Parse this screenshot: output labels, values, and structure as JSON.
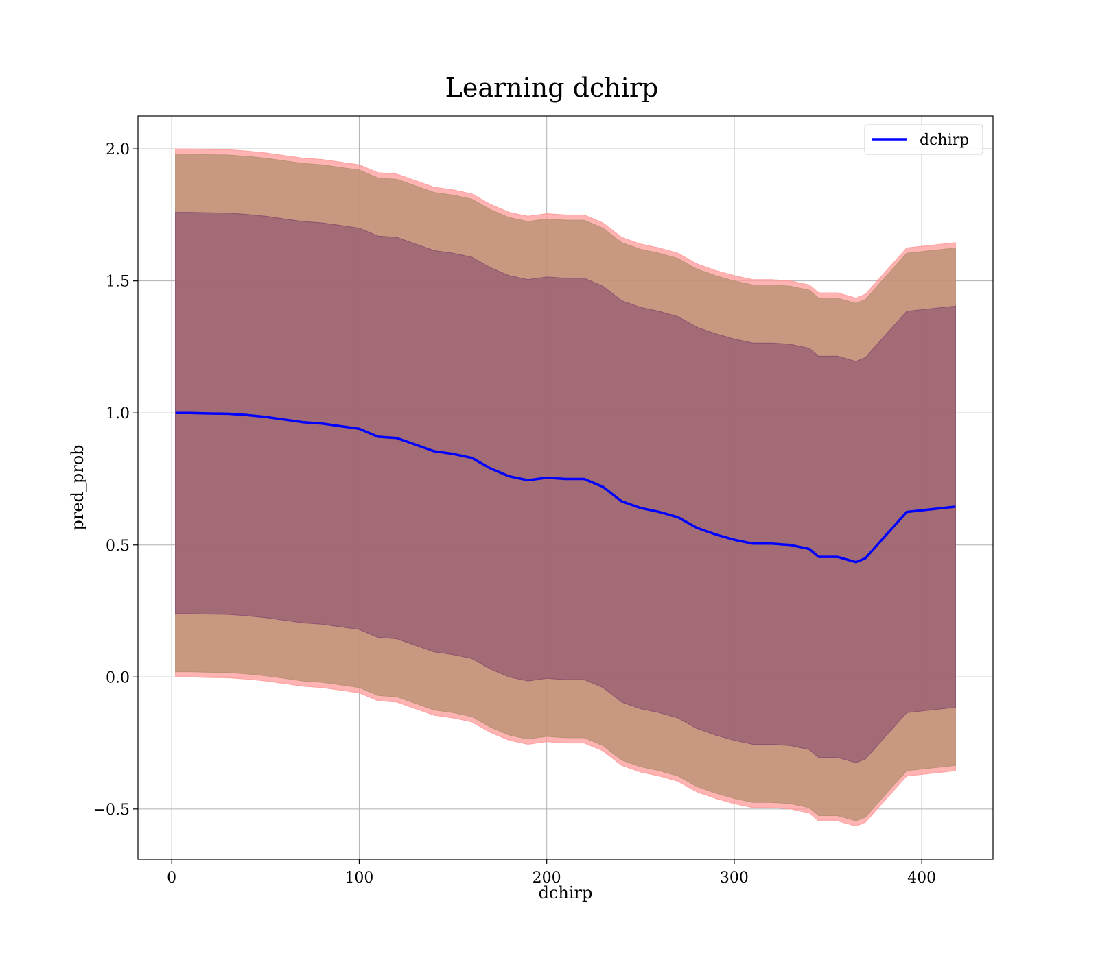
{
  "chart_data": {
    "type": "area",
    "title": "Learning dchirp",
    "xlabel": "dchirp",
    "ylabel": "pred_prob",
    "xlim": [
      -18,
      438
    ],
    "ylim": [
      -0.69,
      2.125
    ],
    "xticks": [
      0,
      100,
      200,
      300,
      400
    ],
    "xtick_labels": [
      "0",
      "100",
      "200",
      "300",
      "400"
    ],
    "yticks": [
      -0.5,
      0.0,
      0.5,
      1.0,
      1.5,
      2.0
    ],
    "ytick_labels": [
      "−0.5",
      "0.0",
      "0.5",
      "1.0",
      "1.5",
      "2.0"
    ],
    "grid": true,
    "legend": {
      "position": "top-right",
      "entries": [
        "dchirp"
      ]
    },
    "series": [
      {
        "name": "dchirp",
        "color": "#0000ff",
        "x": [
          2,
          10,
          20,
          30,
          40,
          50,
          60,
          70,
          80,
          90,
          100,
          110,
          120,
          130,
          140,
          150,
          160,
          170,
          180,
          190,
          200,
          210,
          220,
          230,
          240,
          250,
          260,
          270,
          280,
          290,
          300,
          310,
          320,
          330,
          340,
          345,
          355,
          365,
          370,
          380,
          392,
          418
        ],
        "values": [
          1.0,
          1.0,
          0.998,
          0.997,
          0.992,
          0.985,
          0.975,
          0.965,
          0.96,
          0.95,
          0.94,
          0.91,
          0.905,
          0.88,
          0.855,
          0.845,
          0.83,
          0.79,
          0.76,
          0.745,
          0.755,
          0.75,
          0.75,
          0.72,
          0.665,
          0.64,
          0.625,
          0.605,
          0.565,
          0.54,
          0.52,
          0.505,
          0.505,
          0.5,
          0.485,
          0.455,
          0.455,
          0.435,
          0.45,
          0.53,
          0.625,
          0.645
        ]
      }
    ],
    "bands": [
      {
        "name": "outer_band",
        "color": "#ff9999",
        "opacity": 0.75,
        "lower_offset": -1.0,
        "upper_offset": 1.0
      },
      {
        "name": "middle_band",
        "color": "#b5906f",
        "opacity": 0.75,
        "lower_offset": -0.98,
        "upper_offset": 0.98
      },
      {
        "name": "inner_band",
        "color": "#8a4d6e",
        "opacity": 0.6,
        "lower_offset": -0.76,
        "upper_offset": 0.76
      }
    ]
  }
}
